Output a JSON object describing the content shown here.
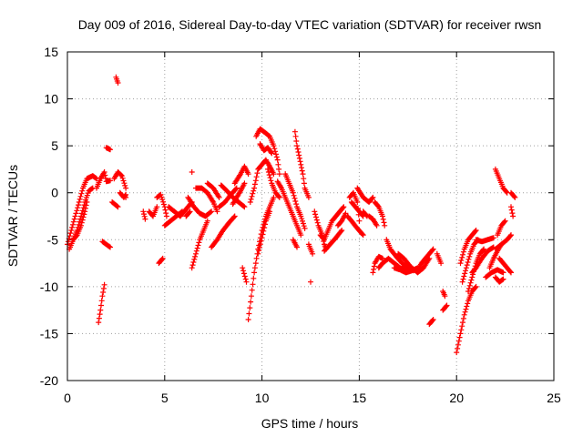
{
  "chart_data": {
    "type": "scatter",
    "title": "Day 009 of 2016, Sidereal Day-to-day VTEC variation (SDTVAR) for receiver rwsn",
    "xlabel": "GPS time / hours",
    "ylabel": "SDTVAR / TECUs",
    "xlim": [
      0,
      25
    ],
    "ylim": [
      -20,
      15
    ],
    "xticks": [
      0,
      5,
      10,
      15,
      20,
      25
    ],
    "yticks": [
      -20,
      -15,
      -10,
      -5,
      0,
      5,
      10,
      15
    ],
    "grid": true,
    "marker": "+",
    "marker_color": "#ff0000",
    "tracks": [
      [
        [
          0.0,
          -5.5
        ],
        [
          0.2,
          -4.0
        ],
        [
          0.4,
          -2.5
        ],
        [
          0.6,
          -1.0
        ],
        [
          0.8,
          0.5
        ],
        [
          1.0,
          1.5
        ],
        [
          1.3,
          1.8
        ],
        [
          1.5,
          1.5
        ]
      ],
      [
        [
          0.1,
          -6.0
        ],
        [
          0.3,
          -5.0
        ],
        [
          0.5,
          -4.0
        ],
        [
          0.7,
          -2.5
        ],
        [
          0.9,
          -1.0
        ],
        [
          1.1,
          0.2
        ],
        [
          1.3,
          0.5
        ]
      ],
      [
        [
          0.3,
          -5.0
        ],
        [
          0.5,
          -4.5
        ],
        [
          0.7,
          -3.5
        ],
        [
          0.9,
          -2.0
        ],
        [
          1.0,
          -1.0
        ]
      ],
      [
        [
          1.6,
          -13.8
        ],
        [
          1.7,
          -12.5
        ],
        [
          1.8,
          -11.0
        ],
        [
          1.9,
          -9.8
        ]
      ],
      [
        [
          1.5,
          0.5
        ],
        [
          1.7,
          1.5
        ],
        [
          1.9,
          2.2
        ],
        [
          2.0,
          1.2
        ],
        [
          2.2,
          1.3
        ]
      ],
      [
        [
          2.0,
          4.8
        ],
        [
          2.2,
          4.6
        ]
      ],
      [
        [
          2.5,
          12.3
        ],
        [
          2.6,
          11.7
        ]
      ],
      [
        [
          1.8,
          -5.2
        ],
        [
          2.2,
          -5.8
        ]
      ],
      [
        [
          2.3,
          -1.0
        ],
        [
          2.6,
          -1.5
        ]
      ],
      [
        [
          2.4,
          1.5
        ],
        [
          2.6,
          2.2
        ],
        [
          2.8,
          1.8
        ],
        [
          3.0,
          0.5
        ],
        [
          3.0,
          -0.5
        ]
      ],
      [
        [
          2.7,
          0.0
        ],
        [
          2.9,
          -0.5
        ],
        [
          3.0,
          -0.2
        ]
      ],
      [
        [
          3.9,
          -2.0
        ],
        [
          4.0,
          -2.8
        ]
      ],
      [
        [
          4.2,
          -2.0
        ],
        [
          4.4,
          -2.5
        ],
        [
          4.6,
          -1.5
        ]
      ],
      [
        [
          4.6,
          -0.5
        ],
        [
          4.8,
          -0.2
        ],
        [
          5.0,
          -1.5
        ],
        [
          5.1,
          -2.5
        ]
      ],
      [
        [
          4.7,
          -7.5
        ],
        [
          4.9,
          -7.0
        ]
      ],
      [
        [
          5.0,
          -3.5
        ],
        [
          5.3,
          -3.0
        ],
        [
          5.6,
          -2.5
        ],
        [
          5.9,
          -2.0
        ]
      ],
      [
        [
          5.2,
          -1.5
        ],
        [
          5.5,
          -2.0
        ],
        [
          5.8,
          -2.5
        ],
        [
          6.0,
          -2.0
        ],
        [
          6.2,
          -1.5
        ],
        [
          6.4,
          -1.0
        ]
      ],
      [
        [
          6.1,
          -2.5
        ],
        [
          6.3,
          -2.0
        ]
      ],
      [
        [
          6.4,
          2.2
        ]
      ],
      [
        [
          6.4,
          -8.0
        ],
        [
          6.6,
          -6.5
        ],
        [
          6.8,
          -5.0
        ],
        [
          7.0,
          -4.0
        ],
        [
          7.2,
          -3.0
        ]
      ],
      [
        [
          6.2,
          -0.5
        ],
        [
          6.5,
          -1.5
        ],
        [
          6.8,
          -2.2
        ],
        [
          7.1,
          -2.5
        ],
        [
          7.4,
          -2.0
        ]
      ],
      [
        [
          6.6,
          0.5
        ],
        [
          6.9,
          0.5
        ],
        [
          7.2,
          0.0
        ],
        [
          7.5,
          -1.0
        ],
        [
          7.7,
          -2.0
        ]
      ],
      [
        [
          7.2,
          1.0
        ],
        [
          7.5,
          0.5
        ],
        [
          7.8,
          -0.5
        ]
      ],
      [
        [
          7.4,
          -5.8
        ],
        [
          7.7,
          -5.0
        ],
        [
          8.0,
          -4.0
        ],
        [
          8.3,
          -3.2
        ],
        [
          8.6,
          -2.5
        ]
      ],
      [
        [
          7.8,
          -1.5
        ],
        [
          8.1,
          -1.0
        ],
        [
          8.4,
          -0.2
        ],
        [
          8.7,
          0.5
        ]
      ],
      [
        [
          7.9,
          0.8
        ],
        [
          8.2,
          0.2
        ],
        [
          8.5,
          -0.5
        ],
        [
          8.8,
          -1.0
        ],
        [
          9.1,
          -1.5
        ]
      ],
      [
        [
          8.6,
          1.0
        ],
        [
          8.9,
          2.0
        ],
        [
          9.1,
          2.8
        ],
        [
          9.3,
          2.0
        ]
      ],
      [
        [
          8.5,
          -1.2
        ],
        [
          8.7,
          -0.5
        ],
        [
          8.9,
          0.2
        ],
        [
          9.1,
          1.0
        ]
      ],
      [
        [
          9.0,
          -8.0
        ],
        [
          9.2,
          -9.5
        ]
      ],
      [
        [
          9.3,
          -13.5
        ],
        [
          9.45,
          -11.0
        ],
        [
          9.6,
          -8.5
        ],
        [
          9.8,
          -6.0
        ],
        [
          10.0,
          -4.0
        ],
        [
          10.2,
          -2.5
        ],
        [
          10.4,
          -1.5
        ],
        [
          10.6,
          -0.5
        ]
      ],
      [
        [
          9.8,
          -6.5
        ],
        [
          10.0,
          -4.8
        ],
        [
          10.2,
          -3.0
        ],
        [
          10.4,
          -2.0
        ]
      ],
      [
        [
          9.4,
          -1.0
        ],
        [
          9.6,
          0.5
        ],
        [
          9.8,
          2.5
        ],
        [
          10.0,
          3.0
        ],
        [
          10.2,
          3.5
        ],
        [
          10.4,
          2.8
        ],
        [
          10.6,
          2.0
        ]
      ],
      [
        [
          9.7,
          6.0
        ],
        [
          9.9,
          6.8
        ],
        [
          10.1,
          6.5
        ],
        [
          10.4,
          6.0
        ],
        [
          10.6,
          5.0
        ],
        [
          10.8,
          3.5
        ],
        [
          10.9,
          2.0
        ]
      ],
      [
        [
          9.9,
          5.2
        ],
        [
          10.1,
          4.5
        ],
        [
          10.3,
          4.8
        ],
        [
          10.5,
          4.2
        ]
      ],
      [
        [
          10.3,
          2.5
        ],
        [
          10.5,
          1.0
        ],
        [
          10.7,
          0.0
        ],
        [
          10.9,
          -0.5
        ]
      ],
      [
        [
          10.8,
          1.2
        ],
        [
          11.0,
          0.5
        ],
        [
          11.2,
          -0.5
        ],
        [
          11.4,
          -1.5
        ],
        [
          11.6,
          -2.5
        ],
        [
          11.8,
          -3.5
        ],
        [
          12.0,
          -4.5
        ]
      ],
      [
        [
          11.2,
          2.0
        ],
        [
          11.4,
          1.0
        ],
        [
          11.6,
          0.0
        ],
        [
          11.8,
          -1.5
        ],
        [
          12.0,
          -2.5
        ],
        [
          12.2,
          -3.8
        ]
      ],
      [
        [
          11.7,
          6.5
        ],
        [
          11.8,
          5.0
        ],
        [
          11.9,
          4.0
        ],
        [
          12.0,
          3.0
        ],
        [
          12.1,
          2.0
        ],
        [
          12.2,
          0.5
        ],
        [
          12.4,
          -0.5
        ]
      ],
      [
        [
          11.6,
          -5.0
        ],
        [
          11.8,
          -5.8
        ]
      ],
      [
        [
          12.4,
          -5.5
        ],
        [
          12.6,
          -6.5
        ]
      ],
      [
        [
          12.5,
          -9.5
        ]
      ],
      [
        [
          12.7,
          -2.0
        ],
        [
          12.9,
          -3.5
        ],
        [
          13.1,
          -4.5
        ],
        [
          13.2,
          -5.5
        ],
        [
          13.3,
          -6.0
        ]
      ],
      [
        [
          13.0,
          -4.5
        ],
        [
          13.2,
          -5.0
        ],
        [
          13.4,
          -4.0
        ],
        [
          13.6,
          -3.0
        ],
        [
          13.8,
          -2.5
        ],
        [
          14.0,
          -2.0
        ],
        [
          14.2,
          -1.5
        ]
      ],
      [
        [
          13.2,
          -6.2
        ],
        [
          13.5,
          -5.5
        ],
        [
          13.8,
          -4.8
        ],
        [
          14.1,
          -4.0
        ]
      ],
      [
        [
          13.9,
          -3.5
        ],
        [
          14.1,
          -3.0
        ],
        [
          14.3,
          -2.2
        ]
      ],
      [
        [
          14.4,
          -2.5
        ],
        [
          14.6,
          -3.0
        ],
        [
          14.9,
          -3.8
        ],
        [
          15.2,
          -4.5
        ]
      ],
      [
        [
          14.5,
          -0.5
        ],
        [
          14.7,
          0.0
        ],
        [
          14.9,
          -1.0
        ],
        [
          15.0,
          -3.0
        ]
      ],
      [
        [
          14.6,
          -1.0
        ],
        [
          14.8,
          -1.5
        ],
        [
          15.0,
          -2.0
        ],
        [
          15.2,
          -2.5
        ]
      ],
      [
        [
          14.9,
          0.5
        ],
        [
          15.2,
          -0.5
        ],
        [
          15.5,
          -1.0
        ],
        [
          15.7,
          -0.5
        ]
      ],
      [
        [
          15.2,
          -2.0
        ],
        [
          15.4,
          -2.5
        ]
      ],
      [
        [
          15.5,
          -2.5
        ],
        [
          15.7,
          -2.8
        ],
        [
          15.9,
          -3.5
        ]
      ],
      [
        [
          15.8,
          -1.0
        ],
        [
          16.0,
          -1.5
        ],
        [
          16.2,
          -2.5
        ],
        [
          16.3,
          -3.5
        ]
      ],
      [
        [
          15.7,
          -8.5
        ],
        [
          15.8,
          -7.5
        ],
        [
          16.0,
          -6.8
        ],
        [
          16.2,
          -7.0
        ]
      ],
      [
        [
          16.0,
          -8.0
        ],
        [
          16.2,
          -7.5
        ],
        [
          16.5,
          -7.0
        ],
        [
          16.8,
          -7.5
        ],
        [
          17.1,
          -8.0
        ],
        [
          17.4,
          -8.3
        ]
      ],
      [
        [
          16.4,
          -5.0
        ],
        [
          16.6,
          -6.0
        ],
        [
          16.9,
          -6.8
        ],
        [
          17.2,
          -7.5
        ],
        [
          17.5,
          -8.0
        ],
        [
          17.8,
          -8.3
        ]
      ],
      [
        [
          16.8,
          -8.0
        ],
        [
          17.1,
          -8.2
        ],
        [
          17.4,
          -8.5
        ],
        [
          17.7,
          -8.3
        ],
        [
          18.0,
          -8.0
        ]
      ],
      [
        [
          17.0,
          -6.5
        ],
        [
          17.3,
          -7.0
        ],
        [
          17.6,
          -7.8
        ],
        [
          18.0,
          -8.5
        ],
        [
          18.3,
          -8.0
        ],
        [
          18.6,
          -7.0
        ]
      ],
      [
        [
          18.0,
          -8.2
        ],
        [
          18.2,
          -7.5
        ],
        [
          18.4,
          -7.0
        ],
        [
          18.6,
          -6.5
        ],
        [
          18.8,
          -6.0
        ]
      ],
      [
        [
          19.0,
          -6.5
        ],
        [
          19.2,
          -7.5
        ]
      ],
      [
        [
          18.6,
          -14.0
        ],
        [
          18.8,
          -13.5
        ]
      ],
      [
        [
          19.3,
          -10.5
        ],
        [
          19.4,
          -11.0
        ]
      ],
      [
        [
          19.3,
          -12.5
        ],
        [
          19.5,
          -12.0
        ]
      ],
      [
        [
          20.0,
          -17.0
        ],
        [
          20.2,
          -15.0
        ],
        [
          20.4,
          -13.0
        ],
        [
          20.6,
          -11.5
        ],
        [
          20.8,
          -10.5
        ],
        [
          21.0,
          -10.0
        ]
      ],
      [
        [
          20.2,
          -7.5
        ],
        [
          20.4,
          -6.0
        ],
        [
          20.6,
          -5.0
        ],
        [
          20.8,
          -4.5
        ],
        [
          21.0,
          -4.0
        ]
      ],
      [
        [
          20.3,
          -9.5
        ],
        [
          20.5,
          -8.0
        ],
        [
          20.7,
          -6.5
        ],
        [
          20.9,
          -5.5
        ],
        [
          21.1,
          -5.0
        ]
      ],
      [
        [
          20.6,
          -10.5
        ],
        [
          20.8,
          -9.0
        ],
        [
          21.0,
          -7.5
        ],
        [
          21.2,
          -6.5
        ],
        [
          21.4,
          -6.0
        ]
      ],
      [
        [
          20.8,
          -8.5
        ],
        [
          21.0,
          -8.0
        ],
        [
          21.3,
          -7.0
        ],
        [
          21.6,
          -6.2
        ],
        [
          21.9,
          -5.8
        ]
      ],
      [
        [
          21.0,
          -5.0
        ],
        [
          21.3,
          -5.2
        ],
        [
          21.6,
          -5.0
        ],
        [
          21.9,
          -4.8
        ]
      ],
      [
        [
          21.7,
          -8.0
        ],
        [
          21.9,
          -7.0
        ],
        [
          22.1,
          -6.2
        ],
        [
          22.3,
          -5.5
        ]
      ],
      [
        [
          21.5,
          -9.0
        ],
        [
          21.8,
          -8.5
        ],
        [
          22.1,
          -8.2
        ],
        [
          22.4,
          -8.5
        ]
      ],
      [
        [
          22.0,
          -6.0
        ],
        [
          22.3,
          -5.5
        ],
        [
          22.6,
          -5.0
        ],
        [
          22.8,
          -4.5
        ]
      ],
      [
        [
          22.1,
          -4.5
        ],
        [
          22.3,
          -3.5
        ],
        [
          22.5,
          -3.0
        ]
      ],
      [
        [
          22.2,
          -7.0
        ],
        [
          22.4,
          -7.5
        ],
        [
          22.6,
          -8.0
        ],
        [
          22.8,
          -8.5
        ]
      ],
      [
        [
          22.0,
          -9.0
        ],
        [
          22.2,
          -9.5
        ],
        [
          22.4,
          -9.2
        ]
      ],
      [
        [
          22.0,
          2.5
        ],
        [
          22.2,
          1.5
        ],
        [
          22.4,
          0.5
        ],
        [
          22.6,
          0.0
        ]
      ],
      [
        [
          22.8,
          -1.5
        ],
        [
          22.9,
          -2.5
        ]
      ],
      [
        [
          22.8,
          0.0
        ],
        [
          23.0,
          -0.5
        ]
      ]
    ]
  }
}
